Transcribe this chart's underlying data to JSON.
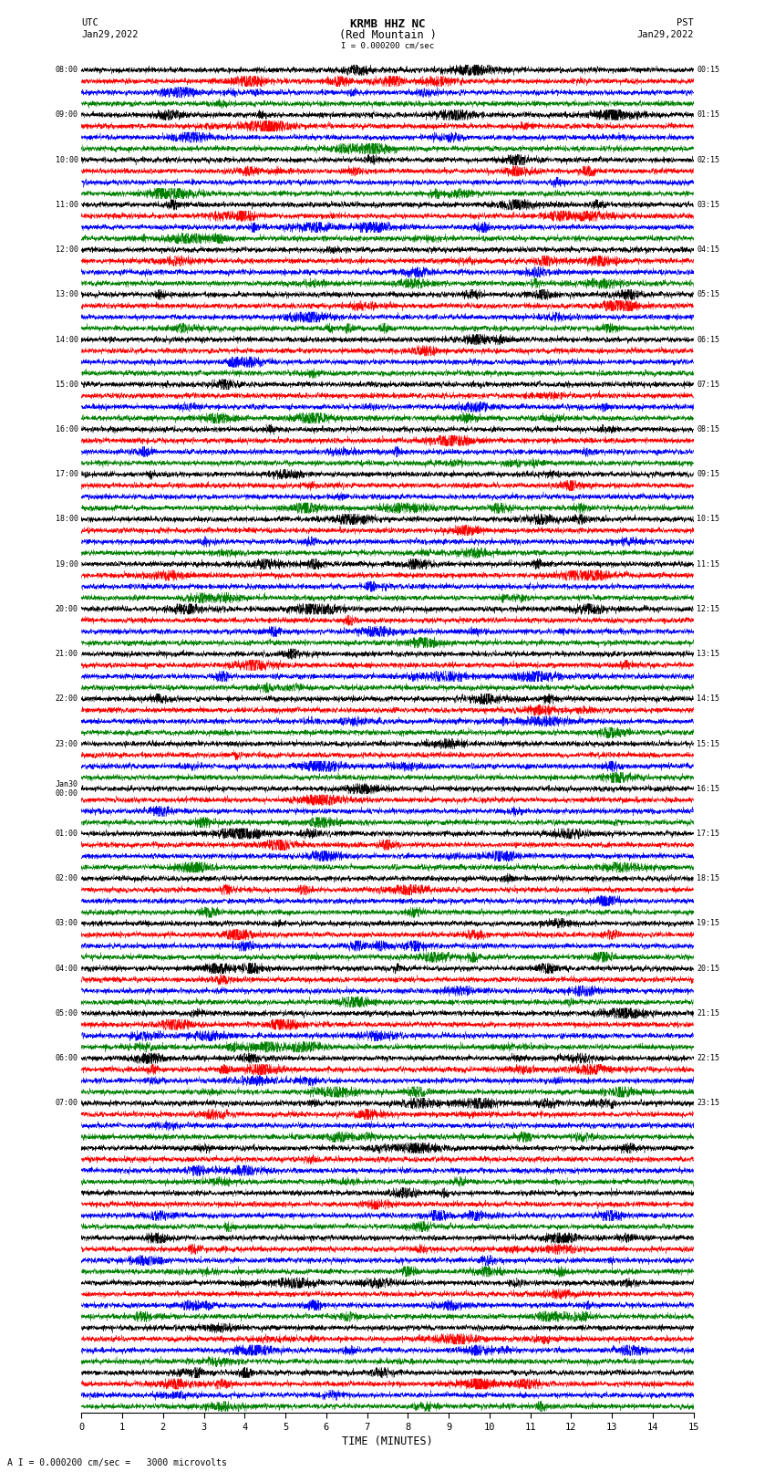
{
  "title_line1": "KRMB HHZ NC",
  "title_line2": "(Red Mountain )",
  "scale_text": "I = 0.000200 cm/sec",
  "bottom_scale_text": "A I = 0.000200 cm/sec =   3000 microvolts",
  "xlabel": "TIME (MINUTES)",
  "left_times": [
    "08:00",
    "",
    "",
    "",
    "09:00",
    "",
    "",
    "",
    "10:00",
    "",
    "",
    "",
    "11:00",
    "",
    "",
    "",
    "12:00",
    "",
    "",
    "",
    "13:00",
    "",
    "",
    "",
    "14:00",
    "",
    "",
    "",
    "15:00",
    "",
    "",
    "",
    "16:00",
    "",
    "",
    "",
    "17:00",
    "",
    "",
    "",
    "18:00",
    "",
    "",
    "",
    "19:00",
    "",
    "",
    "",
    "20:00",
    "",
    "",
    "",
    "21:00",
    "",
    "",
    "",
    "22:00",
    "",
    "",
    "",
    "23:00",
    "",
    "",
    "",
    "Jan30\n00:00",
    "",
    "",
    "",
    "01:00",
    "",
    "",
    "",
    "02:00",
    "",
    "",
    "",
    "03:00",
    "",
    "",
    "",
    "04:00",
    "",
    "",
    "",
    "05:00",
    "",
    "",
    "",
    "06:00",
    "",
    "",
    "",
    "07:00",
    "",
    ""
  ],
  "right_times": [
    "00:15",
    "",
    "",
    "",
    "01:15",
    "",
    "",
    "",
    "02:15",
    "",
    "",
    "",
    "03:15",
    "",
    "",
    "",
    "04:15",
    "",
    "",
    "",
    "05:15",
    "",
    "",
    "",
    "06:15",
    "",
    "",
    "",
    "07:15",
    "",
    "",
    "",
    "08:15",
    "",
    "",
    "",
    "09:15",
    "",
    "",
    "",
    "10:15",
    "",
    "",
    "",
    "11:15",
    "",
    "",
    "",
    "12:15",
    "",
    "",
    "",
    "13:15",
    "",
    "",
    "",
    "14:15",
    "",
    "",
    "",
    "15:15",
    "",
    "",
    "",
    "16:15",
    "",
    "",
    "",
    "17:15",
    "",
    "",
    "",
    "18:15",
    "",
    "",
    "",
    "19:15",
    "",
    "",
    "",
    "20:15",
    "",
    "",
    "",
    "21:15",
    "",
    "",
    "",
    "22:15",
    "",
    "",
    "",
    "23:15",
    "",
    ""
  ],
  "colors": [
    "black",
    "red",
    "blue",
    "green"
  ],
  "n_rows": 120,
  "n_cols": 4500,
  "x_min": 0,
  "x_max": 15,
  "x_ticks": [
    0,
    1,
    2,
    3,
    4,
    5,
    6,
    7,
    8,
    9,
    10,
    11,
    12,
    13,
    14,
    15
  ],
  "seed": 42,
  "bg_color": "white",
  "fig_width": 8.5,
  "fig_height": 16.13,
  "dpi": 100
}
